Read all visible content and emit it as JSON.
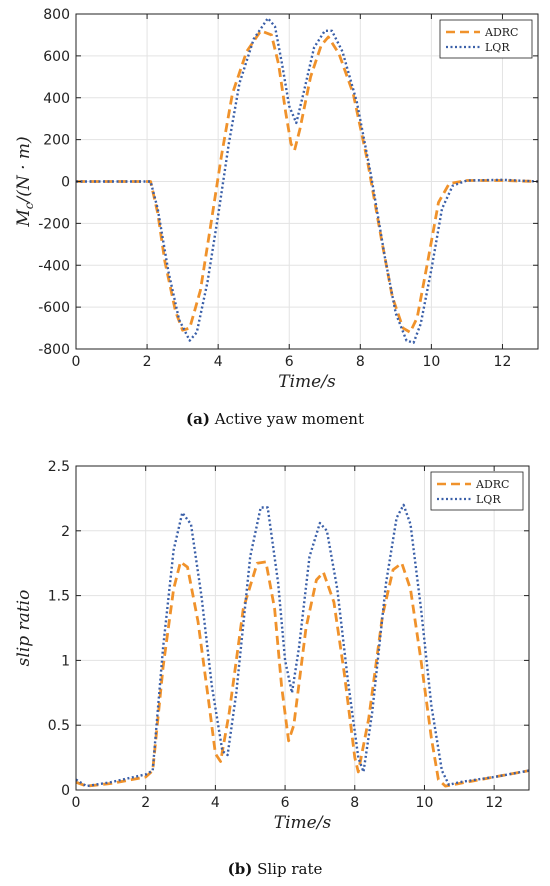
{
  "chart_data": [
    {
      "type": "line",
      "ylabel": "Mc/(N·m)",
      "ylabel_base": "M",
      "ylabel_sub": "c",
      "ylabel_rest": "/(N · m)",
      "xlabel": "Time/s",
      "xlim": [
        0,
        13
      ],
      "ylim": [
        -800,
        800
      ],
      "xticks": [
        0,
        2,
        4,
        6,
        8,
        10,
        12
      ],
      "yticks": [
        -800,
        -600,
        -400,
        -200,
        0,
        200,
        400,
        600,
        800
      ],
      "grid": true,
      "legend_position": "top-right",
      "series": [
        {
          "name": "ADRC",
          "color": "#F0922B",
          "style": "dashed",
          "points": [
            [
              0,
              0
            ],
            [
              2.1,
              0
            ],
            [
              2.3,
              -150
            ],
            [
              2.5,
              -380
            ],
            [
              2.8,
              -620
            ],
            [
              3.0,
              -710
            ],
            [
              3.2,
              -700
            ],
            [
              3.5,
              -520
            ],
            [
              3.8,
              -200
            ],
            [
              4.1,
              130
            ],
            [
              4.4,
              420
            ],
            [
              4.8,
              620
            ],
            [
              5.2,
              720
            ],
            [
              5.5,
              700
            ],
            [
              5.7,
              560
            ],
            [
              5.9,
              330
            ],
            [
              6.05,
              180
            ],
            [
              6.15,
              150
            ],
            [
              6.3,
              250
            ],
            [
              6.6,
              500
            ],
            [
              6.9,
              650
            ],
            [
              7.1,
              690
            ],
            [
              7.4,
              610
            ],
            [
              7.8,
              420
            ],
            [
              8.2,
              100
            ],
            [
              8.6,
              -280
            ],
            [
              8.9,
              -550
            ],
            [
              9.2,
              -700
            ],
            [
              9.4,
              -720
            ],
            [
              9.6,
              -650
            ],
            [
              9.9,
              -380
            ],
            [
              10.2,
              -100
            ],
            [
              10.5,
              -10
            ],
            [
              11.0,
              5
            ],
            [
              12.0,
              5
            ],
            [
              13.0,
              0
            ]
          ]
        },
        {
          "name": "LQR",
          "color": "#3A5FA8",
          "style": "dotted",
          "points": [
            [
              0,
              0
            ],
            [
              2.1,
              0
            ],
            [
              2.3,
              -130
            ],
            [
              2.6,
              -430
            ],
            [
              2.9,
              -660
            ],
            [
              3.2,
              -760
            ],
            [
              3.4,
              -720
            ],
            [
              3.7,
              -480
            ],
            [
              4.0,
              -160
            ],
            [
              4.3,
              180
            ],
            [
              4.6,
              470
            ],
            [
              5.0,
              680
            ],
            [
              5.4,
              780
            ],
            [
              5.6,
              740
            ],
            [
              5.8,
              560
            ],
            [
              6.0,
              360
            ],
            [
              6.2,
              280
            ],
            [
              6.4,
              420
            ],
            [
              6.7,
              640
            ],
            [
              7.0,
              720
            ],
            [
              7.2,
              720
            ],
            [
              7.5,
              620
            ],
            [
              7.9,
              380
            ],
            [
              8.3,
              30
            ],
            [
              8.7,
              -370
            ],
            [
              9.0,
              -630
            ],
            [
              9.3,
              -760
            ],
            [
              9.5,
              -770
            ],
            [
              9.7,
              -680
            ],
            [
              10.0,
              -420
            ],
            [
              10.3,
              -130
            ],
            [
              10.6,
              -20
            ],
            [
              11.0,
              5
            ],
            [
              12.0,
              8
            ],
            [
              13.0,
              0
            ]
          ]
        }
      ]
    },
    {
      "type": "line",
      "ylabel": "slip ratio",
      "xlabel": "Time/s",
      "xlim": [
        0,
        13
      ],
      "ylim": [
        0,
        2.5
      ],
      "xticks": [
        0,
        2,
        4,
        6,
        8,
        10,
        12
      ],
      "yticks": [
        0,
        0.5,
        1,
        1.5,
        2,
        2.5
      ],
      "ytick_labels": [
        "0",
        "0.5",
        "1",
        "1.5",
        "2",
        "2.5"
      ],
      "grid": true,
      "legend_position": "top-right",
      "series": [
        {
          "name": "ADRC",
          "color": "#F0922B",
          "style": "dashed",
          "points": [
            [
              0,
              0.06
            ],
            [
              0.3,
              0.03
            ],
            [
              1.0,
              0.05
            ],
            [
              2.0,
              0.1
            ],
            [
              2.2,
              0.15
            ],
            [
              2.5,
              0.95
            ],
            [
              2.8,
              1.55
            ],
            [
              3.0,
              1.76
            ],
            [
              3.2,
              1.72
            ],
            [
              3.5,
              1.3
            ],
            [
              3.8,
              0.7
            ],
            [
              4.0,
              0.28
            ],
            [
              4.15,
              0.22
            ],
            [
              4.4,
              0.6
            ],
            [
              4.8,
              1.4
            ],
            [
              5.2,
              1.75
            ],
            [
              5.45,
              1.76
            ],
            [
              5.7,
              1.4
            ],
            [
              5.9,
              0.8
            ],
            [
              6.1,
              0.38
            ],
            [
              6.25,
              0.5
            ],
            [
              6.6,
              1.25
            ],
            [
              6.9,
              1.62
            ],
            [
              7.1,
              1.68
            ],
            [
              7.4,
              1.45
            ],
            [
              7.7,
              0.9
            ],
            [
              8.0,
              0.25
            ],
            [
              8.1,
              0.14
            ],
            [
              8.4,
              0.55
            ],
            [
              8.8,
              1.35
            ],
            [
              9.1,
              1.7
            ],
            [
              9.35,
              1.75
            ],
            [
              9.6,
              1.55
            ],
            [
              9.9,
              1.0
            ],
            [
              10.2,
              0.4
            ],
            [
              10.4,
              0.08
            ],
            [
              10.6,
              0.03
            ],
            [
              11.0,
              0.05
            ],
            [
              12.0,
              0.1
            ],
            [
              13.0,
              0.15
            ]
          ]
        },
        {
          "name": "LQR",
          "color": "#3A5FA8",
          "style": "dotted",
          "points": [
            [
              0,
              0.08
            ],
            [
              0.3,
              0.03
            ],
            [
              1.0,
              0.06
            ],
            [
              2.0,
              0.12
            ],
            [
              2.2,
              0.15
            ],
            [
              2.5,
              1.1
            ],
            [
              2.8,
              1.85
            ],
            [
              3.05,
              2.14
            ],
            [
              3.3,
              2.05
            ],
            [
              3.6,
              1.5
            ],
            [
              3.9,
              0.8
            ],
            [
              4.2,
              0.3
            ],
            [
              4.35,
              0.27
            ],
            [
              4.6,
              0.75
            ],
            [
              5.0,
              1.8
            ],
            [
              5.3,
              2.18
            ],
            [
              5.5,
              2.18
            ],
            [
              5.8,
              1.6
            ],
            [
              6.0,
              1.0
            ],
            [
              6.2,
              0.75
            ],
            [
              6.4,
              1.1
            ],
            [
              6.7,
              1.8
            ],
            [
              7.0,
              2.06
            ],
            [
              7.2,
              2.0
            ],
            [
              7.5,
              1.55
            ],
            [
              7.8,
              0.85
            ],
            [
              8.1,
              0.25
            ],
            [
              8.25,
              0.14
            ],
            [
              8.5,
              0.6
            ],
            [
              8.9,
              1.6
            ],
            [
              9.2,
              2.1
            ],
            [
              9.4,
              2.2
            ],
            [
              9.6,
              2.05
            ],
            [
              9.9,
              1.4
            ],
            [
              10.2,
              0.65
            ],
            [
              10.5,
              0.15
            ],
            [
              10.7,
              0.04
            ],
            [
              11.0,
              0.06
            ],
            [
              12.0,
              0.1
            ],
            [
              13.0,
              0.15
            ]
          ]
        }
      ]
    }
  ],
  "captions": [
    {
      "label": "(a)",
      "text": " Active yaw moment"
    },
    {
      "label": "(b)",
      "text": " Slip rate"
    }
  ]
}
